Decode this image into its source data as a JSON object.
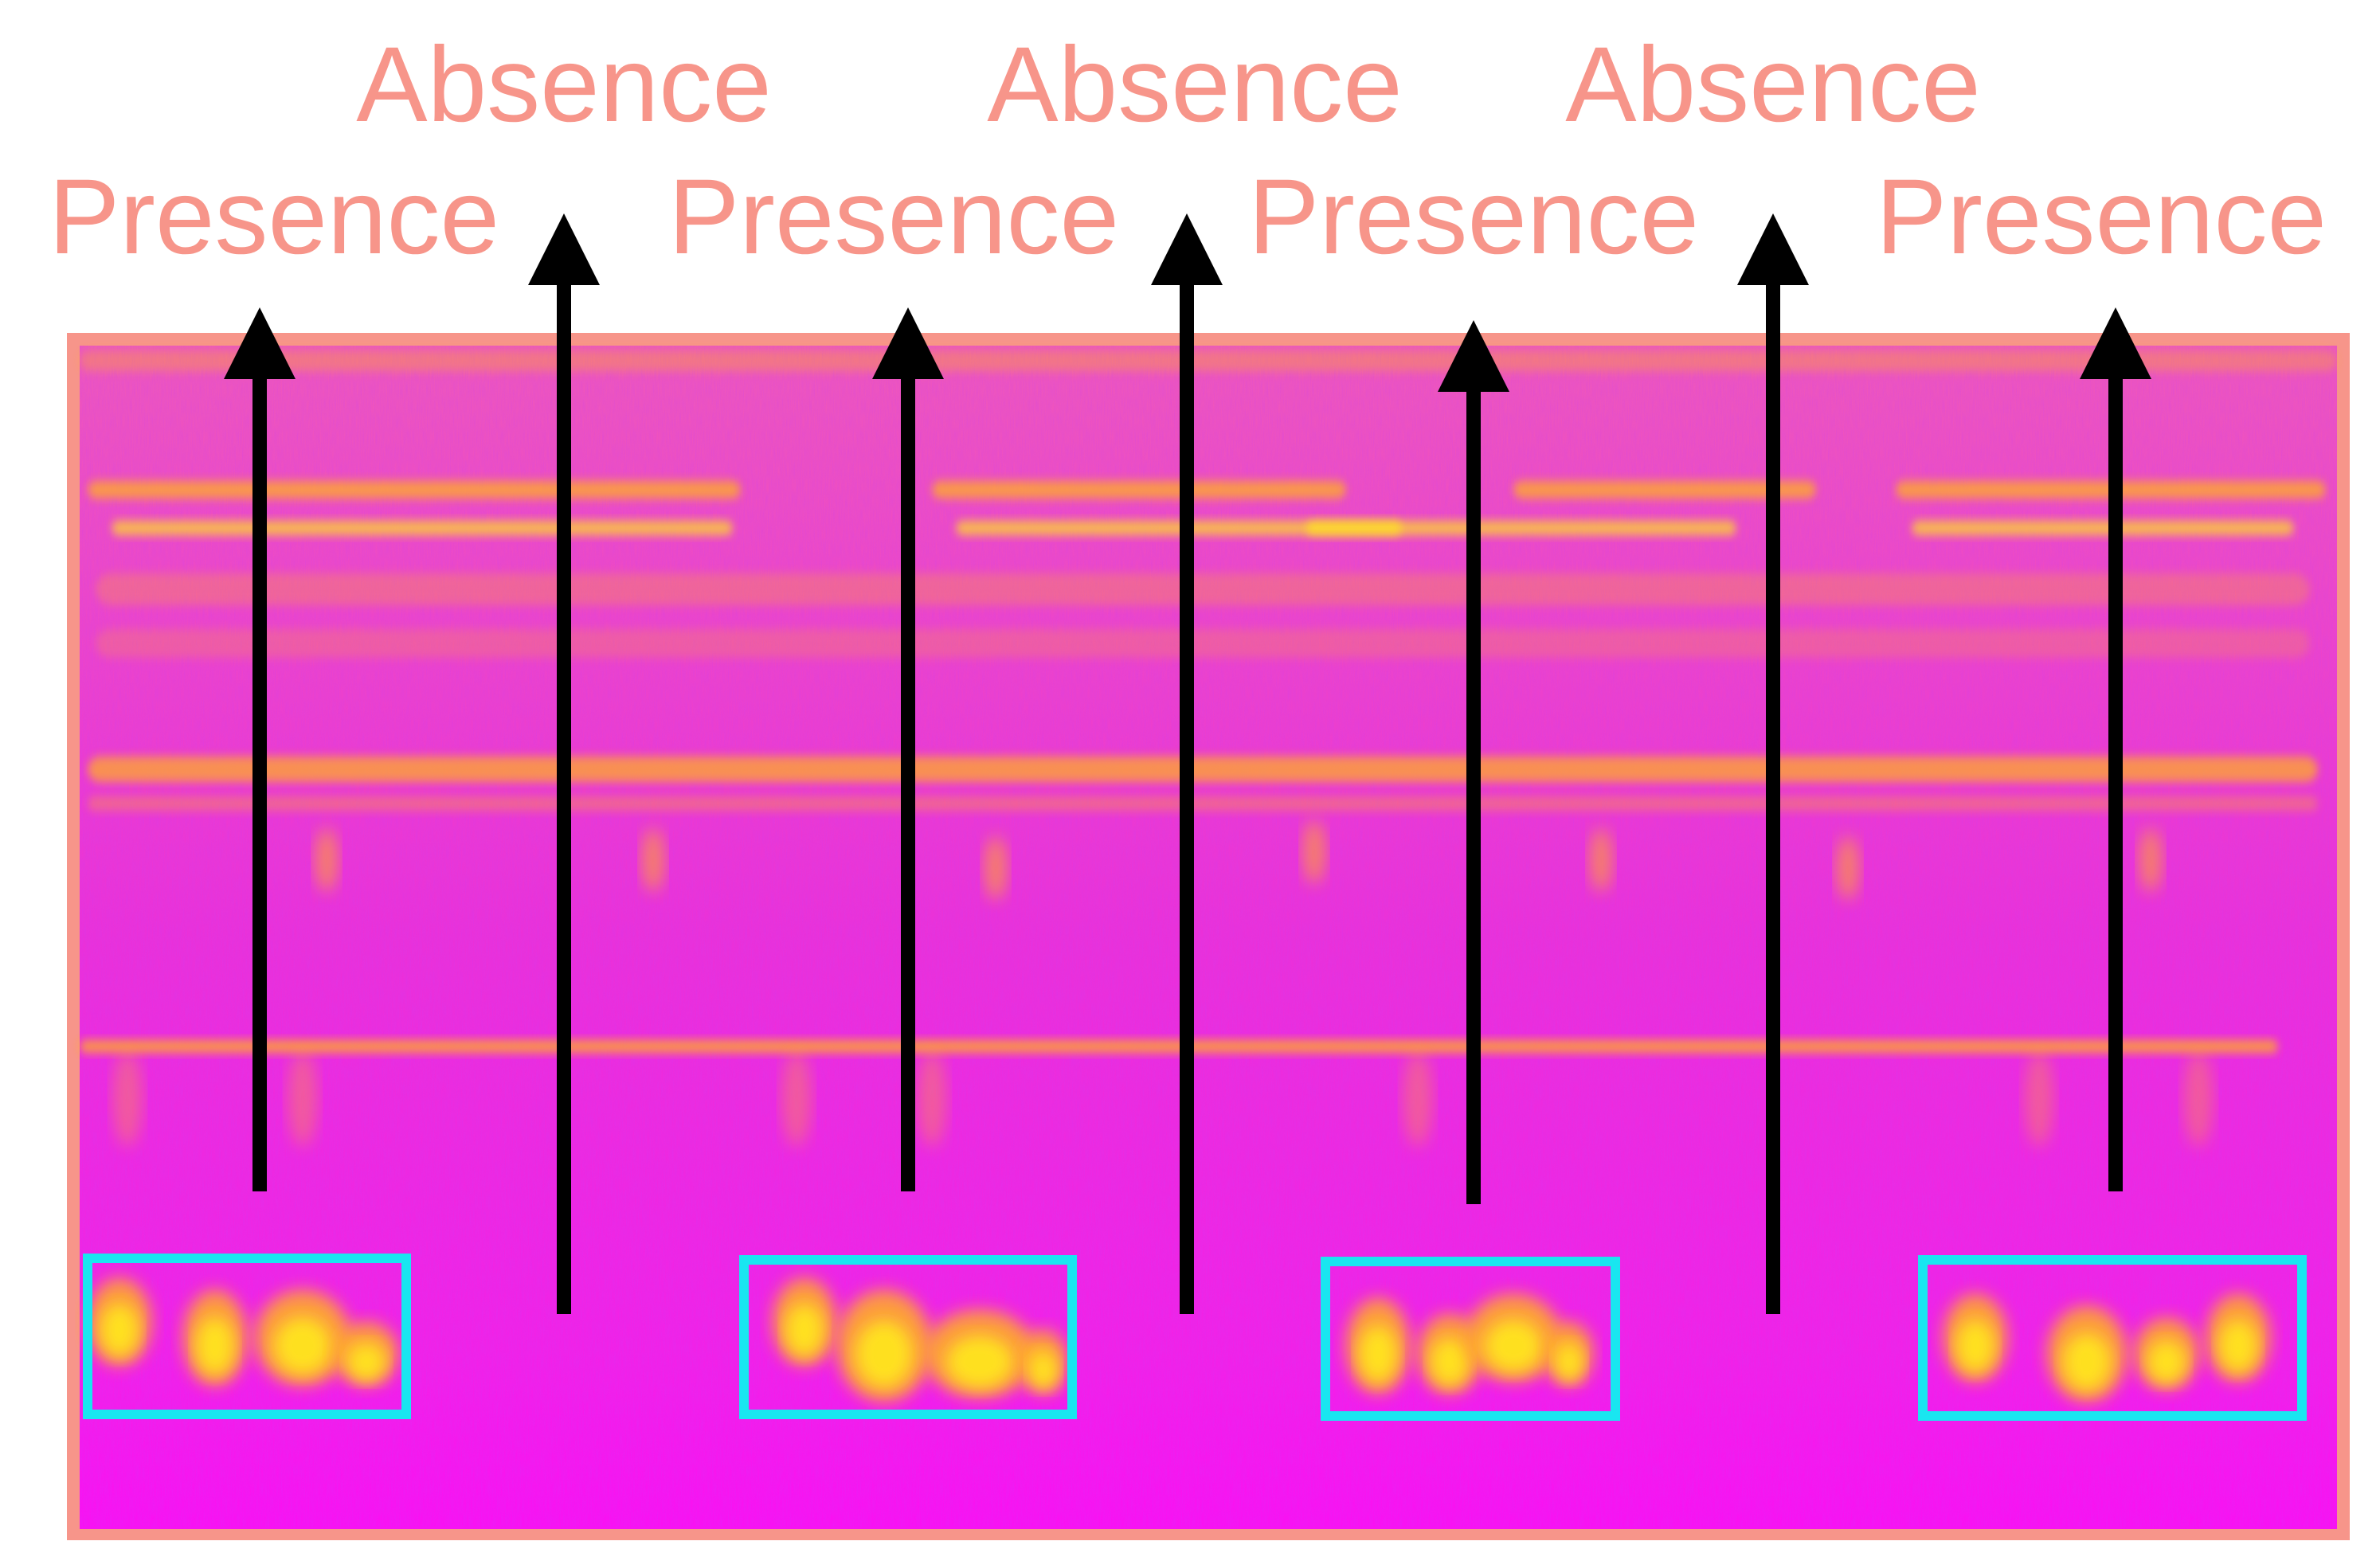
{
  "labels": {
    "presence": [
      "Presence",
      "Presence",
      "Presence",
      "Presence"
    ],
    "absence": [
      "Absence",
      "Absence",
      "Absence"
    ]
  },
  "colors": {
    "label_text": "#f7958a",
    "frame": "#f7958a",
    "spectrogram_base": "#ee2fd6",
    "spectrogram_low": "#ff10ee",
    "energy": "#ffb020",
    "energy_hot": "#ffe81a",
    "detection_box": "#19e6f0",
    "arrow": "#000000"
  }
}
